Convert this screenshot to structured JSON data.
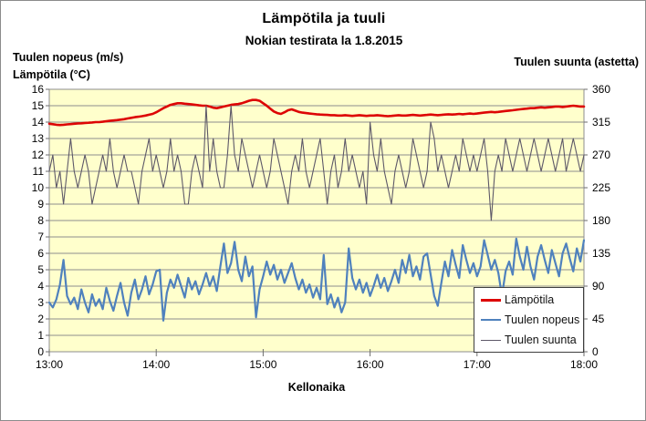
{
  "chart": {
    "title": "Lämpötila ja tuuli",
    "subtitle": "Nokian testirata la 1.8.2015",
    "left_axis_title_line1": "Tuulen nopeus (m/s)",
    "left_axis_title_line2": "Lämpötila (°C)",
    "right_axis_title": "Tuulen suunta (astetta)",
    "x_axis_title": "Kellonaika",
    "legend": [
      {
        "label": "Lämpötila",
        "color": "#dd0505",
        "thickness": 3
      },
      {
        "label": "Tuulen nopeus",
        "color": "#4f81bd",
        "thickness": 2.4
      },
      {
        "label": "Tuulen suunta",
        "color": "#5d5868",
        "thickness": 1.1
      }
    ],
    "colors": {
      "plot_background": "#ffffcc",
      "grid": "#8e8e8e",
      "axis": "#6e6e6e",
      "outer_border": "#8c8c8c",
      "text": "#000000"
    }
  },
  "chart_data": {
    "type": "line",
    "title": "Lämpötila ja tuuli",
    "subtitle": "Nokian testirata la 1.8.2015",
    "xlabel": "Kellonaika",
    "x_unit": "minutes since 13:00",
    "x_ticks": [
      "13:00",
      "14:00",
      "15:00",
      "16:00",
      "17:00",
      "18:00"
    ],
    "x_tick_minutes": [
      0,
      60,
      120,
      180,
      240,
      300
    ],
    "left_axis": {
      "title": "Tuulen nopeus (m/s) / Lämpötila (°C)",
      "min": 0,
      "max": 16,
      "step": 1,
      "ticks": [
        0,
        1,
        2,
        3,
        4,
        5,
        6,
        7,
        8,
        9,
        10,
        11,
        12,
        13,
        14,
        15,
        16
      ]
    },
    "right_axis": {
      "title": "Tuulen suunta (astetta)",
      "min": 0,
      "max": 360,
      "step": 45,
      "ticks": [
        0,
        45,
        90,
        135,
        180,
        225,
        270,
        315,
        360
      ]
    },
    "grid": "horizontal, every 1 unit of left axis",
    "legend_position": "inside right, boxed",
    "x": [
      0,
      2,
      4,
      6,
      8,
      10,
      12,
      14,
      16,
      18,
      20,
      22,
      24,
      26,
      28,
      30,
      32,
      34,
      36,
      38,
      40,
      42,
      44,
      46,
      48,
      50,
      52,
      54,
      56,
      58,
      60,
      62,
      64,
      66,
      68,
      70,
      72,
      74,
      76,
      78,
      80,
      82,
      84,
      86,
      88,
      90,
      92,
      94,
      96,
      98,
      100,
      102,
      104,
      106,
      108,
      110,
      112,
      114,
      116,
      118,
      120,
      122,
      124,
      126,
      128,
      130,
      132,
      134,
      136,
      138,
      140,
      142,
      144,
      146,
      148,
      150,
      152,
      154,
      156,
      158,
      160,
      162,
      164,
      166,
      168,
      170,
      172,
      174,
      176,
      178,
      180,
      182,
      184,
      186,
      188,
      190,
      192,
      194,
      196,
      198,
      200,
      202,
      204,
      206,
      208,
      210,
      212,
      214,
      216,
      218,
      220,
      222,
      224,
      226,
      228,
      230,
      232,
      234,
      236,
      238,
      240,
      242,
      244,
      246,
      248,
      250,
      252,
      254,
      256,
      258,
      260,
      262,
      264,
      266,
      268,
      270,
      272,
      274,
      276,
      278,
      280,
      282,
      284,
      286,
      288,
      290,
      292,
      294,
      296,
      298,
      300
    ],
    "series": [
      {
        "name": "Lämpötila",
        "axis": "left",
        "unit": "°C",
        "color": "#dd0505",
        "width": 2.6,
        "values": [
          13.9,
          13.87,
          13.84,
          13.82,
          13.84,
          13.86,
          13.88,
          13.9,
          13.92,
          13.93,
          13.95,
          13.96,
          13.98,
          14.0,
          14.0,
          14.02,
          14.05,
          14.08,
          14.1,
          14.12,
          14.15,
          14.18,
          14.22,
          14.26,
          14.3,
          14.33,
          14.36,
          14.4,
          14.45,
          14.5,
          14.6,
          14.72,
          14.85,
          14.95,
          15.05,
          15.1,
          15.15,
          15.15,
          15.12,
          15.1,
          15.08,
          15.05,
          15.02,
          15.0,
          15.0,
          14.95,
          14.88,
          14.85,
          14.9,
          14.95,
          15.0,
          15.05,
          15.08,
          15.1,
          15.15,
          15.22,
          15.3,
          15.35,
          15.35,
          15.3,
          15.15,
          15.0,
          14.82,
          14.65,
          14.55,
          14.5,
          14.6,
          14.72,
          14.78,
          14.7,
          14.62,
          14.58,
          14.55,
          14.52,
          14.5,
          14.48,
          14.46,
          14.45,
          14.44,
          14.42,
          14.42,
          14.4,
          14.4,
          14.42,
          14.4,
          14.38,
          14.4,
          14.42,
          14.4,
          14.38,
          14.4,
          14.4,
          14.42,
          14.4,
          14.38,
          14.36,
          14.38,
          14.4,
          14.42,
          14.4,
          14.4,
          14.42,
          14.44,
          14.42,
          14.4,
          14.42,
          14.44,
          14.46,
          14.44,
          14.42,
          14.44,
          14.46,
          14.48,
          14.46,
          14.48,
          14.5,
          14.48,
          14.5,
          14.52,
          14.5,
          14.52,
          14.55,
          14.58,
          14.6,
          14.62,
          14.6,
          14.62,
          14.65,
          14.68,
          14.7,
          14.72,
          14.75,
          14.78,
          14.8,
          14.82,
          14.85,
          14.85,
          14.88,
          14.9,
          14.88,
          14.9,
          14.92,
          14.95,
          14.95,
          14.92,
          14.95,
          14.98,
          15.0,
          14.98,
          14.95,
          14.95
        ]
      },
      {
        "name": "Tuulen nopeus",
        "axis": "left",
        "unit": "m/s",
        "color": "#4f81bd",
        "width": 2.2,
        "values": [
          3.0,
          2.7,
          3.2,
          4.1,
          5.6,
          3.4,
          2.9,
          3.3,
          2.6,
          3.8,
          3.0,
          2.4,
          3.5,
          2.8,
          3.2,
          2.6,
          3.9,
          3.1,
          2.5,
          3.4,
          4.2,
          3.0,
          2.2,
          3.6,
          4.4,
          3.2,
          3.8,
          4.6,
          3.5,
          4.1,
          4.9,
          5.0,
          1.9,
          3.6,
          4.4,
          3.9,
          4.7,
          4.0,
          3.3,
          4.5,
          3.8,
          4.3,
          3.5,
          4.1,
          4.8,
          4.0,
          4.6,
          3.7,
          5.2,
          6.6,
          4.8,
          5.4,
          6.7,
          5.0,
          4.3,
          5.8,
          4.6,
          5.2,
          2.1,
          3.8,
          4.6,
          5.5,
          4.7,
          5.3,
          4.4,
          5.0,
          4.2,
          4.8,
          5.4,
          4.5,
          3.8,
          4.4,
          3.6,
          4.1,
          3.3,
          3.9,
          3.2,
          5.9,
          2.9,
          3.5,
          2.7,
          3.3,
          2.4,
          3.0,
          6.3,
          4.5,
          3.8,
          4.4,
          3.6,
          4.2,
          3.4,
          4.0,
          4.7,
          3.9,
          4.5,
          3.7,
          4.3,
          5.0,
          4.2,
          5.6,
          4.8,
          5.9,
          4.6,
          5.2,
          4.4,
          5.8,
          6.0,
          4.7,
          3.4,
          2.8,
          4.2,
          5.5,
          4.6,
          6.2,
          5.3,
          4.5,
          6.5,
          5.6,
          4.8,
          5.4,
          4.6,
          5.2,
          6.8,
          5.9,
          5.0,
          5.6,
          4.8,
          3.4,
          4.9,
          5.5,
          4.7,
          6.9,
          5.8,
          5.0,
          6.4,
          5.2,
          4.4,
          5.8,
          6.5,
          5.6,
          4.8,
          6.2,
          5.4,
          4.6,
          6.0,
          6.6,
          5.7,
          4.9,
          6.3,
          5.5,
          6.8
        ]
      },
      {
        "name": "Tuulen suunta",
        "axis": "right",
        "unit": "astetta",
        "color": "#5d5868",
        "width": 1.1,
        "values": [
          247.5,
          270,
          225,
          247.5,
          202.5,
          247.5,
          292.5,
          247.5,
          225,
          247.5,
          270,
          247.5,
          202.5,
          225,
          247.5,
          270,
          247.5,
          292.5,
          247.5,
          225,
          247.5,
          270,
          247.5,
          247.5,
          225,
          202.5,
          247.5,
          270,
          292.5,
          247.5,
          270,
          247.5,
          225,
          247.5,
          292.5,
          247.5,
          270,
          247.5,
          202.5,
          202.5,
          247.5,
          270,
          247.5,
          225,
          337.5,
          247.5,
          292.5,
          247.5,
          225,
          225,
          270,
          337.5,
          270,
          247.5,
          292.5,
          270,
          247.5,
          225,
          247.5,
          270,
          247.5,
          225,
          247.5,
          292.5,
          270,
          247.5,
          225,
          202.5,
          247.5,
          270,
          247.5,
          292.5,
          247.5,
          225,
          247.5,
          270,
          292.5,
          247.5,
          202.5,
          247.5,
          270,
          225,
          247.5,
          292.5,
          247.5,
          270,
          247.5,
          225,
          247.5,
          202.5,
          315,
          270,
          247.5,
          292.5,
          247.5,
          225,
          202.5,
          247.5,
          270,
          247.5,
          225,
          247.5,
          292.5,
          270,
          247.5,
          225,
          247.5,
          315,
          292.5,
          247.5,
          270,
          247.5,
          225,
          247.5,
          270,
          247.5,
          292.5,
          270,
          247.5,
          270,
          247.5,
          270,
          292.5,
          247.5,
          180,
          247.5,
          270,
          247.5,
          292.5,
          270,
          247.5,
          270,
          292.5,
          270,
          247.5,
          270,
          292.5,
          270,
          247.5,
          270,
          292.5,
          270,
          247.5,
          270,
          292.5,
          247.5,
          270,
          292.5,
          270,
          247.5,
          270
        ]
      }
    ]
  }
}
